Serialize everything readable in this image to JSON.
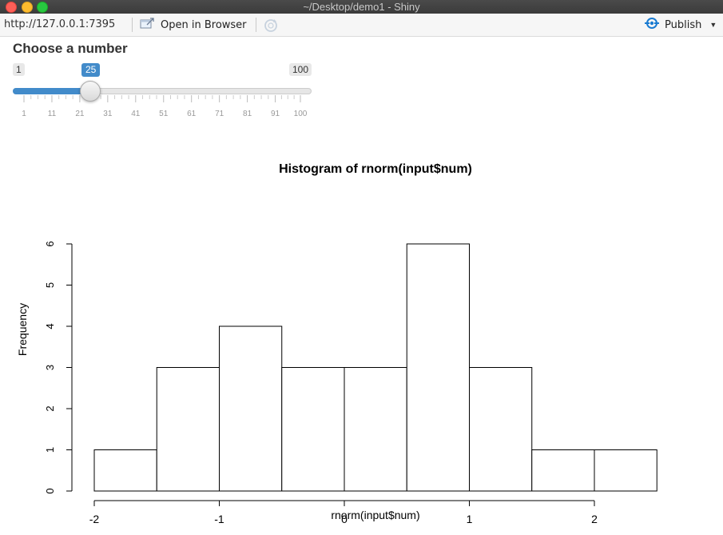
{
  "window": {
    "title": "~/Desktop/demo1 - Shiny"
  },
  "toolbar": {
    "url": "http://127.0.0.1:7395",
    "open_in_browser_label": "Open in Browser",
    "publish_label": "Publish",
    "accent_color": "#1a7bd1"
  },
  "slider": {
    "label": "Choose a number",
    "min": "1",
    "max": "100",
    "value": "25",
    "tick_labels": [
      "1",
      "11",
      "21",
      "31",
      "41",
      "51",
      "61",
      "71",
      "81",
      "91",
      "100"
    ],
    "accent_color": "#428bca"
  },
  "chart_data": {
    "type": "bar",
    "title": "Histogram of rnorm(input$num)",
    "xlabel": "rnorm(input$num)",
    "ylabel": "Frequency",
    "bins": [
      {
        "x0": -2.0,
        "x1": -1.5,
        "value": 1
      },
      {
        "x0": -1.5,
        "x1": -1.0,
        "value": 3
      },
      {
        "x0": -1.0,
        "x1": -0.5,
        "value": 4
      },
      {
        "x0": -0.5,
        "x1": 0.0,
        "value": 3
      },
      {
        "x0": 0.0,
        "x1": 0.5,
        "value": 3
      },
      {
        "x0": 0.5,
        "x1": 1.0,
        "value": 6
      },
      {
        "x0": 1.0,
        "x1": 1.5,
        "value": 3
      },
      {
        "x0": 1.5,
        "x1": 2.0,
        "value": 1
      },
      {
        "x0": 2.0,
        "x1": 2.5,
        "value": 1
      }
    ],
    "xticks": [
      "-2",
      "-1",
      "0",
      "1",
      "2"
    ],
    "yticks": [
      "0",
      "1",
      "2",
      "3",
      "4",
      "5",
      "6"
    ],
    "xlim": [
      -2,
      2.5
    ],
    "ylim": [
      0,
      6
    ],
    "grid": false
  }
}
